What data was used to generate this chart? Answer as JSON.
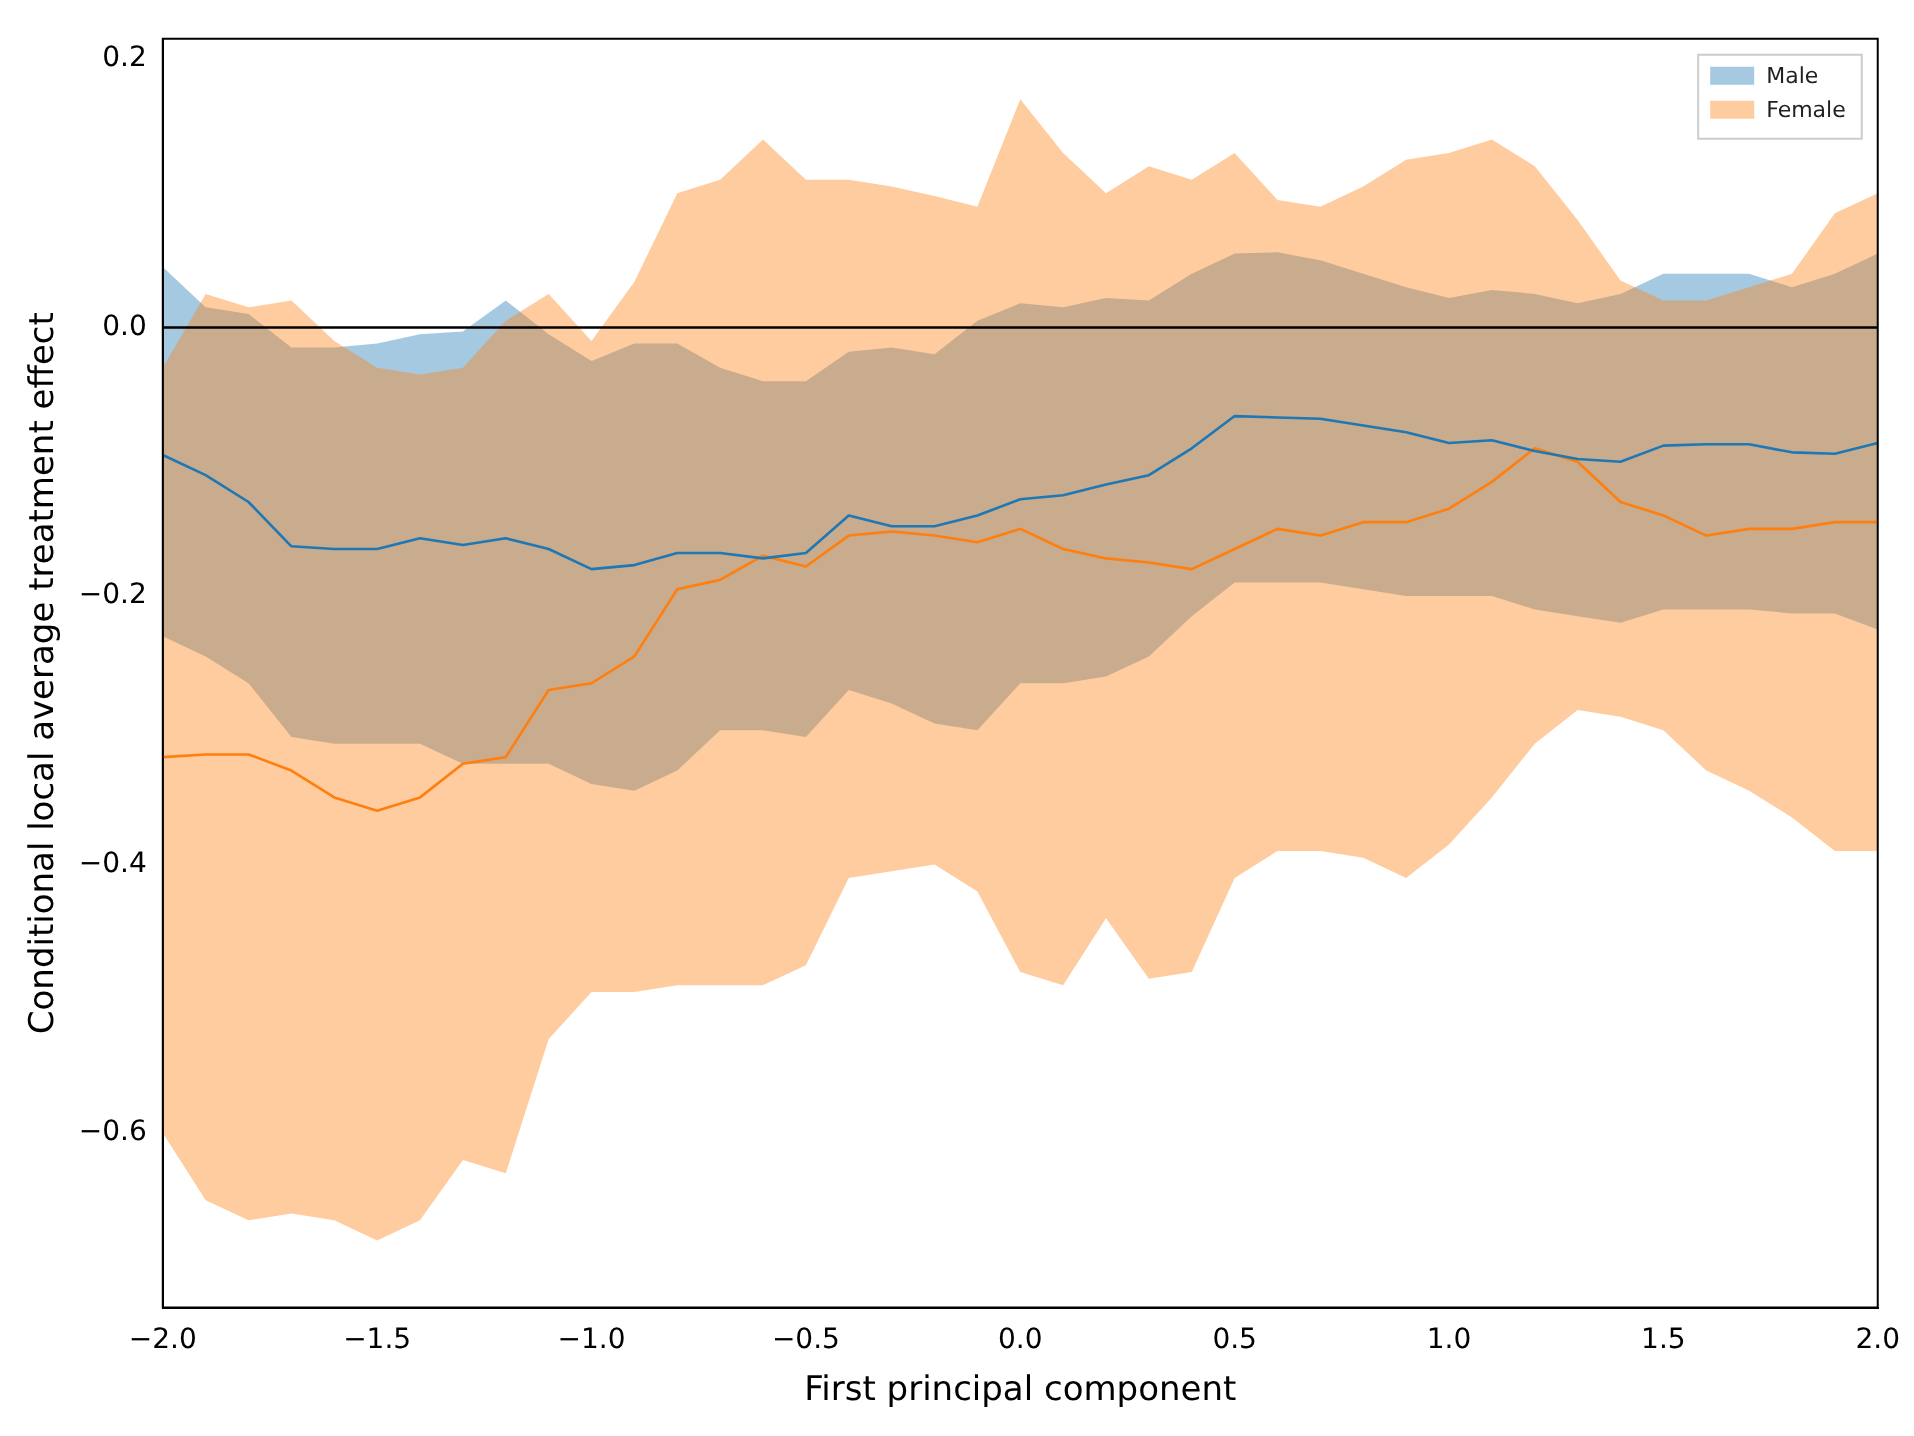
{
  "chart_data": {
    "type": "line",
    "xlabel": "First principal component",
    "ylabel": "Conditional local average treatment effect",
    "xlim": [
      -2,
      2
    ],
    "xticks": [
      {
        "value": -2,
        "label": "−2.0"
      },
      {
        "value": -1.5,
        "label": "−1.5"
      },
      {
        "value": -1,
        "label": "−1.0"
      },
      {
        "value": -0.5,
        "label": "−0.5"
      },
      {
        "value": 0,
        "label": "0.0"
      },
      {
        "value": 0.5,
        "label": "0.5"
      },
      {
        "value": 1,
        "label": "1.0"
      },
      {
        "value": 1.5,
        "label": "1.5"
      },
      {
        "value": 2,
        "label": "2.0"
      }
    ],
    "ylim": [
      -0.73,
      0.215
    ],
    "yticks": [
      {
        "value": -0.6,
        "label": "−0.6"
      },
      {
        "value": -0.4,
        "label": "−0.4"
      },
      {
        "value": -0.2,
        "label": "−0.2"
      },
      {
        "value": 0,
        "label": "0.0"
      },
      {
        "value": 0.2,
        "label": "0.2"
      }
    ],
    "grid": false,
    "legend": "top right",
    "ref_lines": [
      {
        "axis": "y",
        "value": 0,
        "color": "#000000"
      }
    ],
    "x": [
      -2,
      -1.9,
      -1.8,
      -1.7,
      -1.6,
      -1.5,
      -1.4,
      -1.3,
      -1.2,
      -1.1,
      -1,
      -0.9,
      -0.8,
      -0.7,
      -0.6,
      -0.5,
      -0.4,
      -0.3,
      -0.2,
      -0.1,
      0,
      0.1,
      0.2,
      0.3,
      0.4,
      0.5,
      0.6,
      0.7,
      0.8,
      0.9,
      1,
      1.1,
      1.2,
      1.3,
      1.4,
      1.5,
      1.6,
      1.7,
      1.8,
      1.9,
      2
    ],
    "series": [
      {
        "name": "Male",
        "color": "#1f77b4",
        "values": [
          -0.095,
          -0.11,
          -0.13,
          -0.163,
          -0.165,
          -0.165,
          -0.157,
          -0.162,
          -0.157,
          -0.165,
          -0.18,
          -0.177,
          -0.168,
          -0.168,
          -0.172,
          -0.168,
          -0.14,
          -0.148,
          -0.148,
          -0.14,
          -0.128,
          -0.125,
          -0.117,
          -0.11,
          -0.09,
          -0.066,
          -0.067,
          -0.068,
          -0.073,
          -0.078,
          -0.086,
          -0.084,
          -0.092,
          -0.098,
          -0.1,
          -0.088,
          -0.087,
          -0.087,
          -0.093,
          -0.094,
          -0.086
        ],
        "lower": [
          -0.23,
          -0.245,
          -0.265,
          -0.305,
          -0.31,
          -0.31,
          -0.31,
          -0.325,
          -0.325,
          -0.325,
          -0.34,
          -0.345,
          -0.33,
          -0.3,
          -0.3,
          -0.305,
          -0.27,
          -0.28,
          -0.295,
          -0.3,
          -0.265,
          -0.265,
          -0.26,
          -0.245,
          -0.215,
          -0.19,
          -0.19,
          -0.19,
          -0.195,
          -0.2,
          -0.2,
          -0.2,
          -0.21,
          -0.215,
          -0.22,
          -0.21,
          -0.21,
          -0.21,
          -0.213,
          -0.213,
          -0.225
        ],
        "upper": [
          0.045,
          0.015,
          0.01,
          -0.015,
          -0.015,
          -0.012,
          -0.005,
          -0.003,
          0.02,
          -0.005,
          -0.025,
          -0.012,
          -0.012,
          -0.03,
          -0.04,
          -0.04,
          -0.018,
          -0.015,
          -0.02,
          0.005,
          0.018,
          0.015,
          0.022,
          0.02,
          0.04,
          0.055,
          0.056,
          0.05,
          0.04,
          0.03,
          0.022,
          0.028,
          0.025,
          0.018,
          0.025,
          0.04,
          0.04,
          0.04,
          0.03,
          0.04,
          0.055
        ]
      },
      {
        "name": "Female",
        "color": "#ff7f0e",
        "values": [
          -0.32,
          -0.318,
          -0.318,
          -0.33,
          -0.35,
          -0.36,
          -0.35,
          -0.325,
          -0.32,
          -0.27,
          -0.265,
          -0.245,
          -0.195,
          -0.188,
          -0.17,
          -0.178,
          -0.155,
          -0.152,
          -0.155,
          -0.16,
          -0.15,
          -0.165,
          -0.172,
          -0.175,
          -0.18,
          -0.165,
          -0.15,
          -0.155,
          -0.145,
          -0.145,
          -0.135,
          -0.115,
          -0.09,
          -0.1,
          -0.13,
          -0.14,
          -0.155,
          -0.15,
          -0.15,
          -0.145,
          -0.145
        ],
        "lower": [
          -0.6,
          -0.65,
          -0.665,
          -0.66,
          -0.665,
          -0.68,
          -0.665,
          -0.62,
          -0.63,
          -0.53,
          -0.495,
          -0.495,
          -0.49,
          -0.49,
          -0.49,
          -0.475,
          -0.41,
          -0.405,
          -0.4,
          -0.42,
          -0.48,
          -0.49,
          -0.44,
          -0.485,
          -0.48,
          -0.41,
          -0.39,
          -0.39,
          -0.395,
          -0.41,
          -0.385,
          -0.35,
          -0.31,
          -0.285,
          -0.29,
          -0.3,
          -0.33,
          -0.345,
          -0.365,
          -0.39,
          -0.39
        ],
        "upper": [
          -0.03,
          0.025,
          0.015,
          0.02,
          -0.01,
          -0.03,
          -0.035,
          -0.03,
          0.005,
          0.025,
          -0.01,
          0.034,
          0.1,
          0.11,
          0.14,
          0.11,
          0.11,
          0.105,
          0.098,
          0.09,
          0.17,
          0.13,
          0.1,
          0.12,
          0.11,
          0.13,
          0.095,
          0.09,
          0.105,
          0.125,
          0.13,
          0.14,
          0.12,
          0.08,
          0.035,
          0.02,
          0.02,
          0.03,
          0.04,
          0.085,
          0.1
        ]
      }
    ]
  }
}
